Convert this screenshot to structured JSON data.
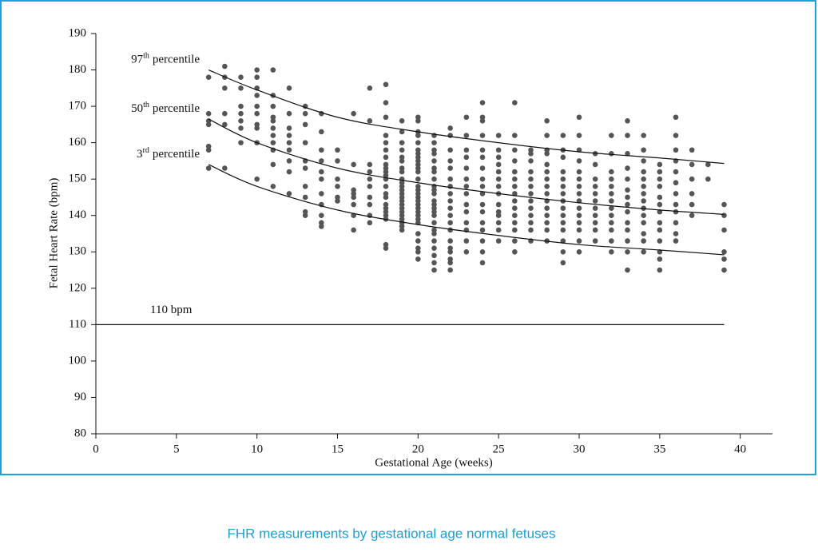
{
  "caption": "FHR measurements by gestational age normal fetuses",
  "chart_data": {
    "type": "scatter",
    "xlabel": "Gestational Age (weeks)",
    "ylabel": "Fetal Heart Rate (bpm)",
    "xlim": [
      0,
      42
    ],
    "ylim": [
      80,
      190
    ],
    "xticks": [
      0,
      5,
      10,
      15,
      20,
      25,
      30,
      35,
      40
    ],
    "yticks": [
      80,
      90,
      100,
      110,
      120,
      130,
      140,
      150,
      160,
      170,
      180,
      190
    ],
    "point_color": "#555555",
    "line_color": "#111111",
    "groups": [
      {
        "x": 7,
        "values": [
          178,
          168,
          166,
          165,
          159,
          158,
          153
        ]
      },
      {
        "x": 8,
        "values": [
          181,
          178,
          175,
          168,
          165,
          153
        ]
      },
      {
        "x": 9,
        "values": [
          178,
          175,
          170,
          168,
          166,
          164,
          160
        ]
      },
      {
        "x": 10,
        "values": [
          180,
          178,
          175,
          173,
          170,
          168,
          165,
          164,
          160,
          150
        ]
      },
      {
        "x": 11,
        "values": [
          180,
          173,
          170,
          167,
          166,
          164,
          162,
          160,
          158,
          154,
          148
        ]
      },
      {
        "x": 12,
        "values": [
          175,
          168,
          164,
          162,
          160,
          158,
          155,
          152,
          146
        ]
      },
      {
        "x": 13,
        "values": [
          170,
          168,
          165,
          160,
          155,
          153,
          148,
          145,
          141,
          140
        ]
      },
      {
        "x": 14,
        "values": [
          168,
          163,
          158,
          155,
          152,
          150,
          146,
          143,
          140,
          138,
          137
        ]
      },
      {
        "x": 15,
        "values": [
          158,
          155,
          150,
          148,
          145,
          144
        ]
      },
      {
        "x": 16,
        "values": [
          168,
          154,
          147,
          146,
          145,
          143,
          140,
          136
        ]
      },
      {
        "x": 17,
        "values": [
          175,
          166,
          154,
          152,
          150,
          148,
          145,
          143,
          140,
          138
        ]
      },
      {
        "x": 18,
        "values": [
          176,
          171,
          167,
          162,
          160,
          158,
          156,
          154,
          153,
          152,
          151,
          150,
          148,
          146,
          145,
          143,
          142,
          141,
          140,
          139,
          132,
          131
        ]
      },
      {
        "x": 19,
        "values": [
          166,
          163,
          160,
          158,
          156,
          155,
          153,
          152,
          150,
          149,
          148,
          147,
          146,
          145,
          144,
          143,
          142,
          141,
          140,
          139,
          138,
          137,
          136
        ]
      },
      {
        "x": 20,
        "values": [
          167,
          166,
          163,
          162,
          160,
          158,
          157,
          156,
          155,
          154,
          153,
          152,
          150,
          148,
          147,
          146,
          145,
          144,
          143,
          142,
          141,
          140,
          139,
          138,
          135,
          133,
          131,
          130,
          128
        ]
      },
      {
        "x": 21,
        "values": [
          162,
          160,
          158,
          157,
          155,
          153,
          152,
          150,
          148,
          147,
          146,
          144,
          143,
          142,
          141,
          140,
          138,
          136,
          135,
          133,
          131,
          129,
          127,
          125
        ]
      },
      {
        "x": 22,
        "values": [
          164,
          162,
          158,
          155,
          153,
          150,
          148,
          146,
          144,
          142,
          140,
          138,
          136,
          133,
          131,
          130,
          128,
          127,
          125
        ]
      },
      {
        "x": 23,
        "values": [
          167,
          162,
          158,
          156,
          153,
          150,
          148,
          146,
          143,
          141,
          138,
          136,
          133,
          130
        ]
      },
      {
        "x": 24,
        "values": [
          171,
          167,
          166,
          162,
          158,
          156,
          153,
          150,
          148,
          146,
          143,
          141,
          138,
          136,
          133,
          130,
          127
        ]
      },
      {
        "x": 25,
        "values": [
          162,
          158,
          156,
          154,
          152,
          150,
          148,
          146,
          143,
          141,
          140,
          138,
          136,
          133
        ]
      },
      {
        "x": 26,
        "values": [
          171,
          162,
          158,
          155,
          152,
          150,
          148,
          146,
          144,
          142,
          140,
          138,
          136,
          133,
          130
        ]
      },
      {
        "x": 27,
        "values": [
          158,
          157,
          155,
          152,
          150,
          148,
          146,
          144,
          142,
          140,
          138,
          136,
          133
        ]
      },
      {
        "x": 28,
        "values": [
          166,
          162,
          158,
          157,
          154,
          152,
          150,
          148,
          146,
          144,
          142,
          140,
          138,
          136,
          133
        ]
      },
      {
        "x": 29,
        "values": [
          162,
          158,
          156,
          152,
          150,
          148,
          146,
          144,
          142,
          140,
          138,
          136,
          133,
          130,
          127
        ]
      },
      {
        "x": 30,
        "values": [
          167,
          162,
          158,
          155,
          152,
          150,
          148,
          146,
          144,
          142,
          140,
          138,
          136,
          133,
          130
        ]
      },
      {
        "x": 31,
        "values": [
          157,
          154,
          150,
          148,
          146,
          144,
          142,
          140,
          138,
          136,
          133
        ]
      },
      {
        "x": 32,
        "values": [
          162,
          157,
          152,
          150,
          148,
          146,
          144,
          142,
          140,
          138,
          136,
          133,
          130
        ]
      },
      {
        "x": 33,
        "values": [
          166,
          162,
          157,
          153,
          150,
          147,
          145,
          143,
          141,
          138,
          136,
          133,
          130,
          125
        ]
      },
      {
        "x": 34,
        "values": [
          162,
          158,
          155,
          152,
          150,
          148,
          146,
          144,
          142,
          140,
          138,
          135,
          133,
          130
        ]
      },
      {
        "x": 35,
        "values": [
          154,
          152,
          150,
          148,
          145,
          143,
          141,
          138,
          136,
          133,
          130,
          128,
          125
        ]
      },
      {
        "x": 36,
        "values": [
          167,
          162,
          158,
          155,
          152,
          149,
          146,
          143,
          141,
          138,
          135,
          133
        ]
      },
      {
        "x": 37,
        "values": [
          158,
          154,
          150,
          146,
          143,
          140
        ]
      },
      {
        "x": 38,
        "values": [
          154,
          150
        ]
      },
      {
        "x": 39,
        "values": [
          143,
          140,
          136,
          130,
          128,
          125
        ]
      }
    ],
    "curves": [
      {
        "label_parts": [
          "97",
          "th",
          "percentile"
        ],
        "x": [
          7,
          10,
          15,
          20,
          25,
          30,
          35,
          39
        ],
        "values": [
          180,
          174.5,
          167,
          163,
          160,
          157.5,
          155.8,
          154.3
        ]
      },
      {
        "label_parts": [
          "50",
          "th",
          "percentile"
        ],
        "x": [
          7,
          10,
          15,
          20,
          25,
          30,
          35,
          39
        ],
        "values": [
          166.5,
          160,
          153,
          149,
          146,
          143.5,
          141.5,
          140.3
        ]
      },
      {
        "label_parts": [
          "3",
          "rd",
          "percentile"
        ],
        "x": [
          7,
          10,
          15,
          20,
          25,
          30,
          35,
          39
        ],
        "values": [
          154,
          148,
          141.5,
          137.5,
          134.5,
          132,
          130.5,
          129.2
        ]
      }
    ],
    "reference": {
      "label": "110 bpm",
      "value": 110,
      "x": [
        0,
        39
      ]
    }
  }
}
